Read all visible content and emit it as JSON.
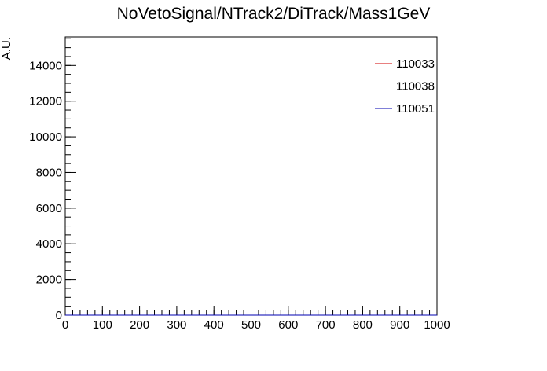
{
  "chart_data": {
    "type": "line",
    "title": "NoVetoSignal/NTrack2/DiTrack/Mass1GeV",
    "xlabel": "",
    "ylabel": "A.U.",
    "xlim": [
      0,
      1000
    ],
    "ylim": [
      0,
      15600
    ],
    "x_ticks": [
      0,
      100,
      200,
      300,
      400,
      500,
      600,
      700,
      800,
      900,
      1000
    ],
    "x_tick_labels": [
      "0",
      "100",
      "200",
      "300",
      "400",
      "500",
      "600",
      "700",
      "800",
      "900",
      "1000"
    ],
    "x_minor_step": 20,
    "y_ticks": [
      0,
      2000,
      4000,
      6000,
      8000,
      10000,
      12000,
      14000
    ],
    "y_tick_labels": [
      "0",
      "2000",
      "4000",
      "6000",
      "8000",
      "10000",
      "12000",
      "14000"
    ],
    "y_minor_step": 500,
    "grid": false,
    "legend_position": "top-right",
    "series": [
      {
        "name": "110033",
        "color": "#d00000",
        "values": []
      },
      {
        "name": "110038",
        "color": "#00e000",
        "values": []
      },
      {
        "name": "110051",
        "color": "#0000b0",
        "values": []
      }
    ]
  }
}
